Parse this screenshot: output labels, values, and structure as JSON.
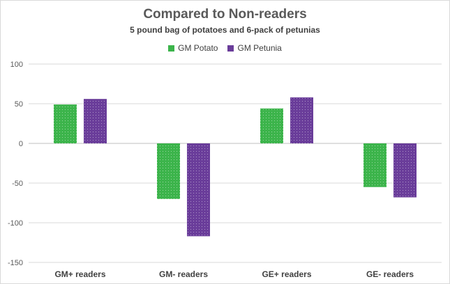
{
  "chart_data": {
    "type": "bar",
    "title": "Compared to Non-readers",
    "subtitle": "5 pound bag of potatoes and 6-pack of petunias",
    "categories": [
      "GM+ readers",
      "GM- readers",
      "GE+ readers",
      "GE- readers"
    ],
    "series": [
      {
        "name": "GM Potato",
        "color": "#3cb44b",
        "values": [
          49,
          -70,
          44,
          -55
        ]
      },
      {
        "name": "GM Petunia",
        "color": "#6a3d9a",
        "values": [
          56,
          -117,
          58,
          -68
        ]
      }
    ],
    "ylim": [
      -150,
      100
    ],
    "yticks": [
      100,
      50,
      0,
      -50,
      -100,
      -150
    ],
    "grid": true,
    "legend_position": "top-center"
  }
}
